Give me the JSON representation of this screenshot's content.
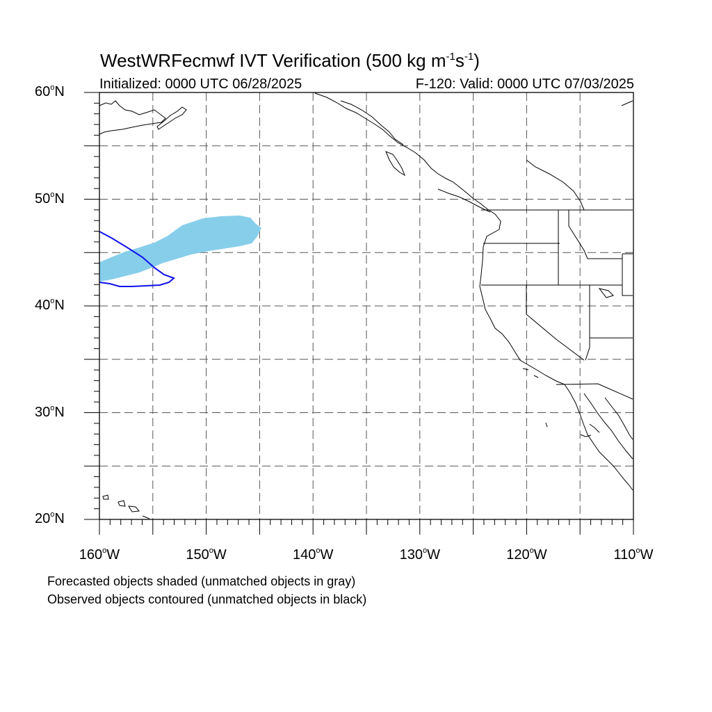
{
  "title": {
    "text": "WestWRFecmwf IVT Verification (500 kg m",
    "exp1": "-1",
    "mid": "s",
    "exp2": "-1",
    "end": ")"
  },
  "subtitle_left": "Initialized: 0000 UTC 06/28/2025",
  "subtitle_right": "F-120: Valid: 0000 UTC 07/03/2025",
  "notes": [
    "Forecasted objects shaded (unmatched objects in gray)",
    "Observed objects contoured (unmatched objects in black)"
  ],
  "map": {
    "lon_range": [
      -160,
      -110
    ],
    "lat_range": [
      20,
      60
    ],
    "lat_labels": [
      {
        "value": 60,
        "text": "60",
        "hemi": "N"
      },
      {
        "value": 50,
        "text": "50",
        "hemi": "N"
      },
      {
        "value": 40,
        "text": "40",
        "hemi": "N"
      },
      {
        "value": 30,
        "text": "30",
        "hemi": "N"
      },
      {
        "value": 20,
        "text": "20",
        "hemi": "N"
      }
    ],
    "lon_labels": [
      {
        "value": -160,
        "text": "160",
        "hemi": "W"
      },
      {
        "value": -150,
        "text": "150",
        "hemi": "W"
      },
      {
        "value": -140,
        "text": "140",
        "hemi": "W"
      },
      {
        "value": -130,
        "text": "130",
        "hemi": "W"
      },
      {
        "value": -120,
        "text": "120",
        "hemi": "W"
      },
      {
        "value": -110,
        "text": "110",
        "hemi": "W"
      }
    ],
    "gridlines": "dashed every 5 degrees",
    "forecast_object_color": "#87ceeb",
    "observed_contour_color": "#1010ee",
    "coastline_color": "#000000"
  }
}
